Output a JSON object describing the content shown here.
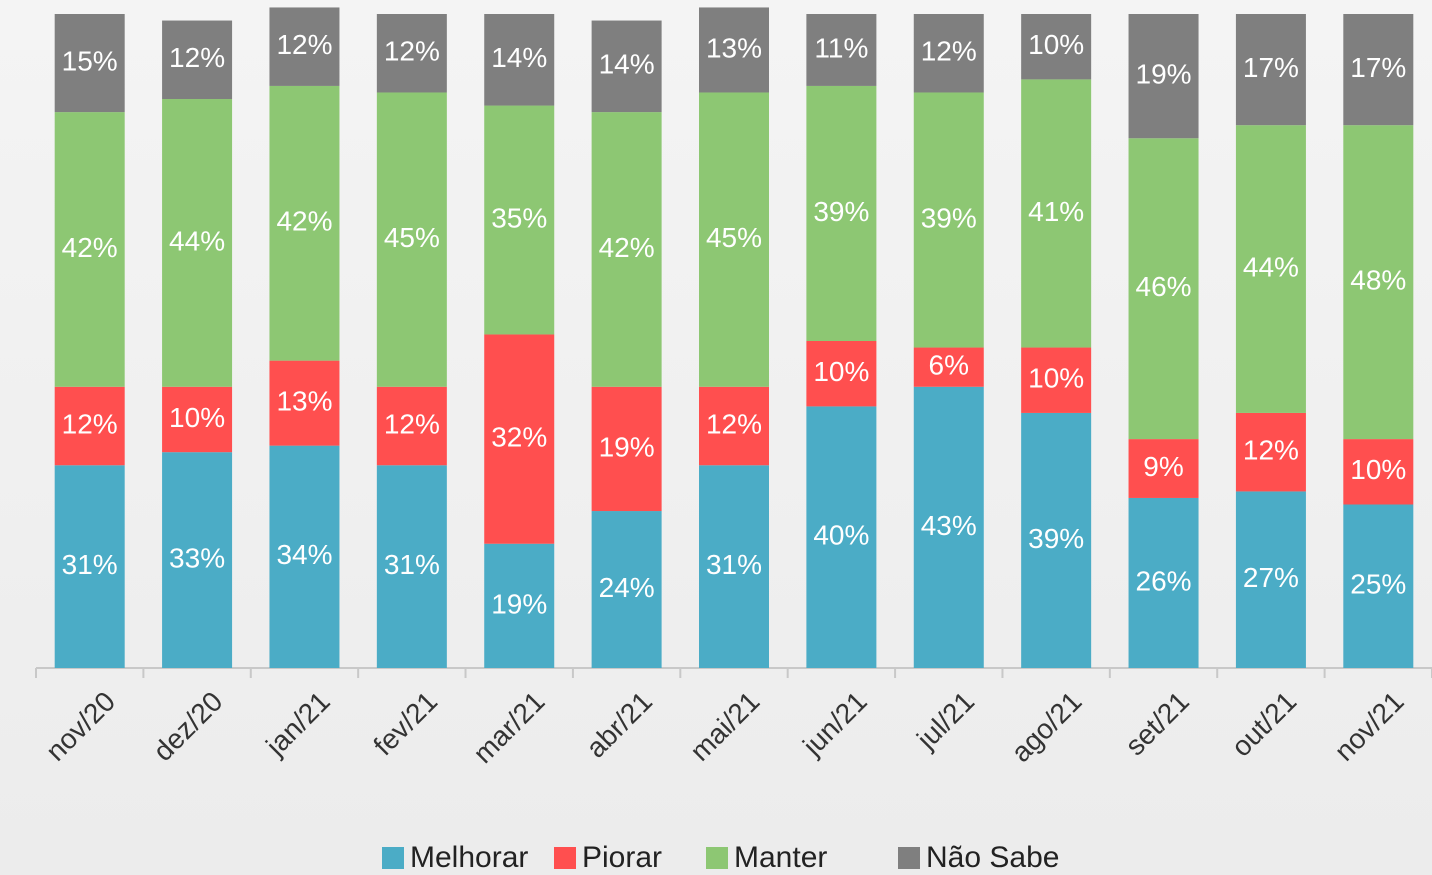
{
  "chart_data": {
    "type": "stacked_bar",
    "categories": [
      "nov/20",
      "dez/20",
      "jan/21",
      "fev/21",
      "mar/21",
      "abr/21",
      "mai/21",
      "jun/21",
      "jul/21",
      "ago/21",
      "set/21",
      "out/21",
      "nov/21"
    ],
    "ylim": [
      0,
      100
    ],
    "series": [
      {
        "name": "Melhorar",
        "color": "#4bacc6",
        "values": [
          31,
          33,
          34,
          31,
          19,
          24,
          31,
          40,
          43,
          39,
          26,
          27,
          25
        ],
        "value_labels": [
          "31%",
          "33%",
          "34%",
          "31%",
          "19%",
          "24%",
          "31%",
          "40%",
          "43%",
          "39%",
          "26%",
          "27%",
          "25%"
        ]
      },
      {
        "name": "Piorar",
        "color": "#ff4f4f",
        "values": [
          12,
          10,
          13,
          12,
          32,
          19,
          12,
          10,
          6,
          10,
          9,
          12,
          10
        ],
        "value_labels": [
          "12%",
          "10%",
          "13%",
          "12%",
          "32%",
          "19%",
          "12%",
          "10%",
          "6%",
          "10%",
          "9%",
          "12%",
          "10%"
        ]
      },
      {
        "name": "Manter",
        "color": "#8dc773",
        "values": [
          42,
          44,
          42,
          45,
          35,
          42,
          45,
          39,
          39,
          41,
          46,
          44,
          48
        ],
        "value_labels": [
          "42%",
          "44%",
          "42%",
          "45%",
          "35%",
          "42%",
          "45%",
          "39%",
          "39%",
          "41%",
          "46%",
          "44%",
          "48%"
        ]
      },
      {
        "name": "Não Sabe",
        "color": "#7f7f7f",
        "values": [
          15,
          12,
          12,
          12,
          14,
          14,
          13,
          11,
          12,
          10,
          19,
          17,
          17
        ],
        "value_labels": [
          "15%",
          "12%",
          "12%",
          "12%",
          "14%",
          "14%",
          "13%",
          "11%",
          "12%",
          "10%",
          "19%",
          "17%",
          "17%"
        ]
      }
    ]
  }
}
